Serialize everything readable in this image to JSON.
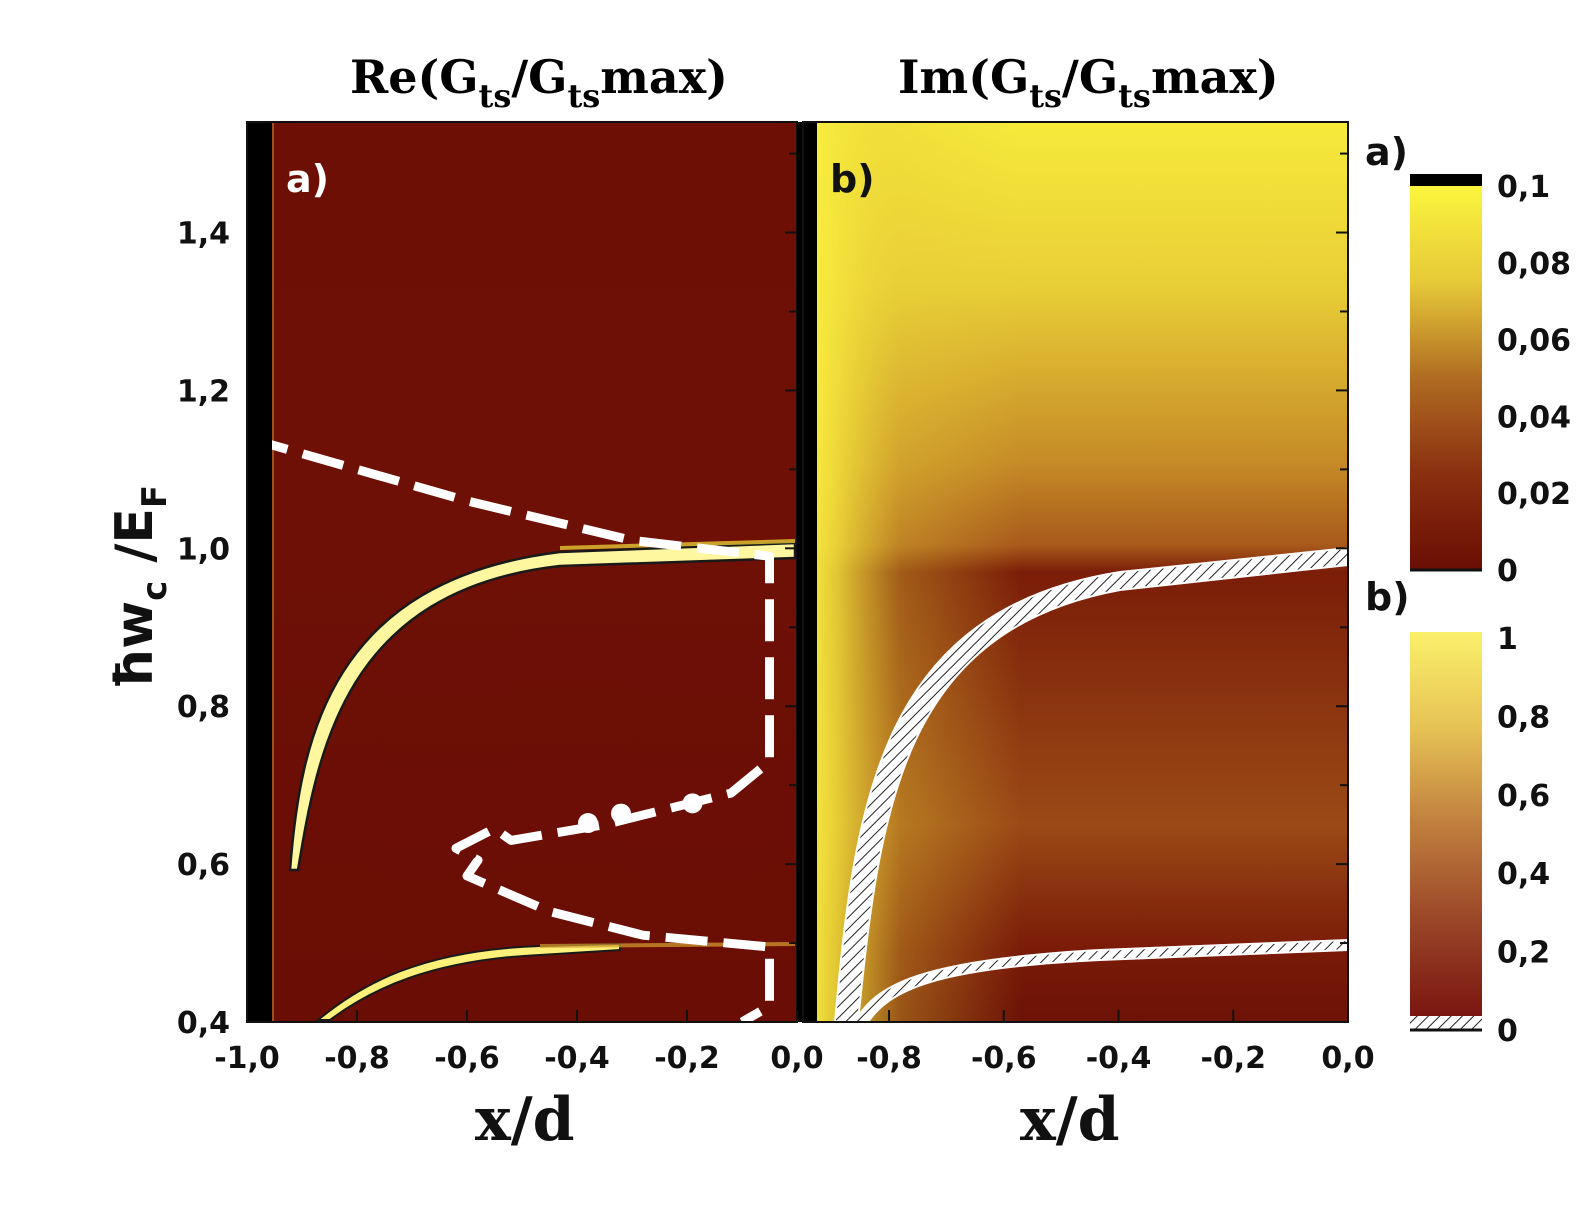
{
  "chart_data": [
    {
      "type": "heatmap",
      "panel": "a)",
      "title_main": "Re(G",
      "title_sub1": "ts",
      "title_mid": "/G",
      "title_sub2": "ts",
      "title_end": "max)",
      "xlabel": "x/d",
      "ylabel_main": "ħw",
      "ylabel_sub1": "c",
      "ylabel_mid": " /E",
      "ylabel_sub2": "F",
      "xlim": [
        -1.0,
        0.0
      ],
      "ylim": [
        0.4,
        1.54
      ],
      "x_ticks": [
        -1.0,
        -0.8,
        -0.6,
        -0.4,
        -0.2,
        0.0
      ],
      "x_tick_labels": [
        "-1,0",
        "-0,8",
        "-0,6",
        "-0,4",
        "-0,2",
        "0,0"
      ],
      "y_ticks": [
        0.4,
        0.6,
        0.8,
        1.0,
        1.2,
        1.4
      ],
      "y_tick_labels": [
        "0,4",
        "0,6",
        "0,8",
        "1,0",
        "1,2",
        "1,4"
      ],
      "bright_bands": [
        {
          "level": 1.0,
          "x_start": -0.93,
          "y_start": 0.6
        },
        {
          "level": 0.5,
          "x_start": -0.87,
          "y_start": 0.4
        }
      ],
      "dashed_curve": [
        [
          -1.0,
          1.14
        ],
        [
          -0.6,
          1.06
        ],
        [
          -0.3,
          1.01
        ],
        [
          -0.05,
          0.99
        ],
        [
          -0.05,
          0.73
        ],
        [
          -0.12,
          0.69
        ],
        [
          -0.35,
          0.65
        ],
        [
          -0.52,
          0.63
        ],
        [
          -0.55,
          0.645
        ],
        [
          -0.62,
          0.62
        ],
        [
          -0.58,
          0.605
        ],
        [
          -0.6,
          0.585
        ],
        [
          -0.45,
          0.54
        ],
        [
          -0.28,
          0.51
        ],
        [
          -0.05,
          0.495
        ],
        [
          -0.05,
          0.42
        ],
        [
          -0.1,
          0.4
        ]
      ],
      "dot_markers": [
        [
          -0.38,
          0.652
        ],
        [
          -0.32,
          0.664
        ],
        [
          -0.19,
          0.677
        ]
      ]
    },
    {
      "type": "heatmap",
      "panel": "b)",
      "title_main": "Im(G",
      "title_sub1": "ts",
      "title_mid": "/G",
      "title_sub2": "ts",
      "title_end": "max)",
      "xlabel": "x/d",
      "xlim": [
        -0.95,
        0.0
      ],
      "ylim": [
        0.4,
        1.54
      ],
      "x_ticks": [
        -0.8,
        -0.6,
        -0.4,
        -0.2,
        0.0
      ],
      "x_tick_labels": [
        "-0,8",
        "-0,6",
        "-0,4",
        "-0,2",
        "0,0"
      ],
      "hatched_bands": [
        {
          "level": 1.0,
          "x_start": -0.88,
          "y_start": 0.4
        },
        {
          "level": 0.5,
          "x_start": -0.84,
          "y_start": 0.4
        }
      ]
    }
  ],
  "colorbars": [
    {
      "label": "a)",
      "tick_labels": [
        "0,1",
        "0,08",
        "0,06",
        "0,04",
        "0,02",
        "0"
      ],
      "values": [
        0.1,
        0.08,
        0.06,
        0.04,
        0.02,
        0
      ]
    },
    {
      "label": "b)",
      "tick_labels": [
        "1",
        "0,8",
        "0,6",
        "0,4",
        "0,2",
        "0"
      ],
      "values": [
        1,
        0.8,
        0.6,
        0.4,
        0.2,
        0
      ]
    }
  ],
  "colors": {
    "dark": "#6b0e04",
    "mid": "#a0521c",
    "bright": "#f7ee3a",
    "pale": "#fff7a8",
    "curve": "#ffffff"
  }
}
